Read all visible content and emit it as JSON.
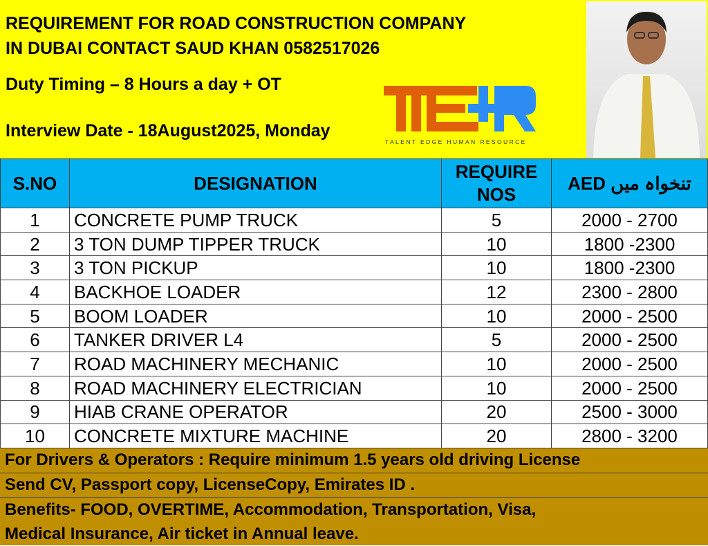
{
  "header": {
    "line1": "REQUIREMENT FOR ROAD CONSTRUCTION COMPANY",
    "line2": "IN DUBAI CONTACT SAUD KHAN 0582517026",
    "duty": "Duty Timing – 8 Hours a day + OT",
    "interview": "Interview Date - 18August2025, Monday"
  },
  "logo": {
    "letters": "TEHR",
    "tagline": "TALENT EDGE HUMAN RESOURCE",
    "colors": {
      "orange": "#E0600A",
      "blue": "#2C8CF4"
    }
  },
  "table": {
    "headers": {
      "sno": "S.NO",
      "designation": "DESIGNATION",
      "require_1": "REQUIRE",
      "require_2": "NOS",
      "salary_aed": "AED",
      "salary_urdu": "تنخواہ میں"
    },
    "rows": [
      {
        "sno": "1",
        "designation": "CONCRETE PUMP TRUCK",
        "nos": "5",
        "salary": "2000 - 2700"
      },
      {
        "sno": "2",
        "designation": "3 TON DUMP TIPPER TRUCK",
        "nos": "10",
        "salary": "1800 -2300"
      },
      {
        "sno": "3",
        "designation": "3 TON PICKUP",
        "nos": "10",
        "salary": "1800 -2300"
      },
      {
        "sno": "4",
        "designation": "BACKHOE LOADER",
        "nos": "12",
        "salary": "2300 - 2800"
      },
      {
        "sno": "5",
        "designation": "BOOM LOADER",
        "nos": "10",
        "salary": "2000 - 2500"
      },
      {
        "sno": "6",
        "designation": "TANKER DRIVER L4",
        "nos": "5",
        "salary": "2000 - 2500"
      },
      {
        "sno": "7",
        "designation": "ROAD MACHINERY MECHANIC",
        "nos": "10",
        "salary": "2000 - 2500"
      },
      {
        "sno": "8",
        "designation": "ROAD MACHINERY ELECTRICIAN",
        "nos": "10",
        "salary": "2000 - 2500"
      },
      {
        "sno": "9",
        "designation": "HIAB CRANE OPERATOR",
        "nos": "20",
        "salary": "2500 - 3000"
      },
      {
        "sno": "10",
        "designation": "CONCRETE MIXTURE MACHINE",
        "nos": "20",
        "salary": "2800 - 3200"
      }
    ]
  },
  "footer": {
    "license": "For Drivers & Operators : Require minimum 1.5 years old driving License",
    "documents": "Send CV, Passport copy, LicenseCopy, Emirates ID .",
    "benefits_1": "Benefits- FOOD, OVERTIME, Accommodation, Transportation, Visa,",
    "benefits_2": "Medical Insurance, Air ticket in Annual leave."
  },
  "colors": {
    "top_bg": "#FFFF00",
    "table_header": "#00B0F0",
    "footer_bg": "#BF8F00"
  }
}
